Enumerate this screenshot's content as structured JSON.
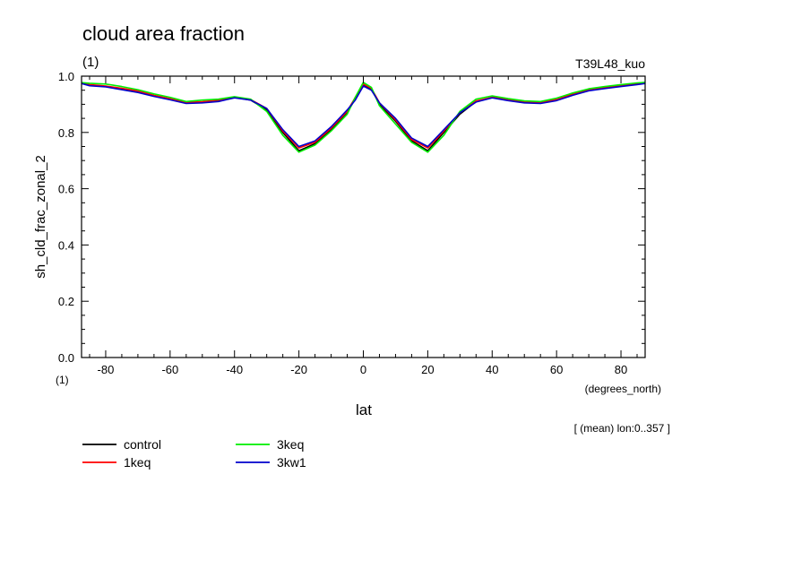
{
  "title": "cloud area fraction",
  "units_label": "(1)",
  "run_label": "T39L48_kuo",
  "x_units_corner": "(1)",
  "x_units": "(degrees_north)",
  "footnote": "[ (mean) lon:0..357 ]",
  "chart_data": {
    "type": "line",
    "title": "cloud area fraction",
    "xlabel": "lat",
    "ylabel": "sh_cld_frac_zonal_2",
    "xlim": [
      -87.5,
      87.5
    ],
    "ylim": [
      0.0,
      1.0
    ],
    "xticks": [
      -80,
      -60,
      -40,
      -20,
      0,
      20,
      40,
      60,
      80
    ],
    "xtick_labels": [
      "-80",
      "-60",
      "-40",
      "-20",
      "0",
      "20",
      "40",
      "60",
      "80"
    ],
    "yticks": [
      0.0,
      0.2,
      0.4,
      0.6,
      0.8,
      1.0
    ],
    "ytick_labels": [
      "0.0",
      "0.2",
      "0.4",
      "0.6",
      "0.8",
      "1.0"
    ],
    "grid": false,
    "legend_position": "bottom-left",
    "x": [
      -87.5,
      -85,
      -80,
      -75,
      -70,
      -65,
      -60,
      -55,
      -50,
      -45,
      -40,
      -35,
      -30,
      -25,
      -20,
      -15,
      -10,
      -5,
      -2.5,
      0,
      2.5,
      5,
      10,
      15,
      20,
      25,
      30,
      35,
      40,
      45,
      50,
      55,
      60,
      65,
      70,
      75,
      80,
      85,
      87.5
    ],
    "series": [
      {
        "name": "control",
        "color": "#000000",
        "values": [
          0.975,
          0.968,
          0.963,
          0.955,
          0.945,
          0.93,
          0.918,
          0.905,
          0.907,
          0.913,
          0.925,
          0.915,
          0.88,
          0.8,
          0.735,
          0.76,
          0.81,
          0.87,
          0.92,
          0.97,
          0.955,
          0.9,
          0.84,
          0.77,
          0.735,
          0.8,
          0.865,
          0.91,
          0.925,
          0.915,
          0.907,
          0.905,
          0.915,
          0.935,
          0.95,
          0.958,
          0.965,
          0.972,
          0.975
        ]
      },
      {
        "name": "1keq",
        "color": "#ff0000",
        "values": [
          0.975,
          0.97,
          0.965,
          0.957,
          0.947,
          0.932,
          0.92,
          0.907,
          0.909,
          0.915,
          0.925,
          0.917,
          0.885,
          0.805,
          0.745,
          0.765,
          0.815,
          0.875,
          0.925,
          0.972,
          0.957,
          0.905,
          0.845,
          0.775,
          0.745,
          0.805,
          0.87,
          0.912,
          0.925,
          0.917,
          0.909,
          0.907,
          0.917,
          0.937,
          0.952,
          0.96,
          0.967,
          0.974,
          0.976
        ]
      },
      {
        "name": "3keq",
        "color": "#00ee00",
        "values": [
          0.977,
          0.975,
          0.972,
          0.963,
          0.952,
          0.937,
          0.925,
          0.91,
          0.915,
          0.918,
          0.927,
          0.918,
          0.875,
          0.79,
          0.73,
          0.755,
          0.805,
          0.865,
          0.925,
          0.978,
          0.96,
          0.895,
          0.83,
          0.765,
          0.73,
          0.79,
          0.875,
          0.918,
          0.93,
          0.92,
          0.912,
          0.91,
          0.922,
          0.94,
          0.955,
          0.963,
          0.97,
          0.976,
          0.978
        ]
      },
      {
        "name": "3kw1",
        "color": "#0000cc",
        "values": [
          0.974,
          0.966,
          0.962,
          0.952,
          0.942,
          0.928,
          0.916,
          0.903,
          0.905,
          0.91,
          0.923,
          0.915,
          0.885,
          0.81,
          0.75,
          0.77,
          0.82,
          0.88,
          0.915,
          0.965,
          0.95,
          0.905,
          0.85,
          0.78,
          0.75,
          0.81,
          0.87,
          0.908,
          0.923,
          0.913,
          0.905,
          0.903,
          0.913,
          0.932,
          0.948,
          0.956,
          0.963,
          0.97,
          0.974
        ]
      }
    ]
  }
}
